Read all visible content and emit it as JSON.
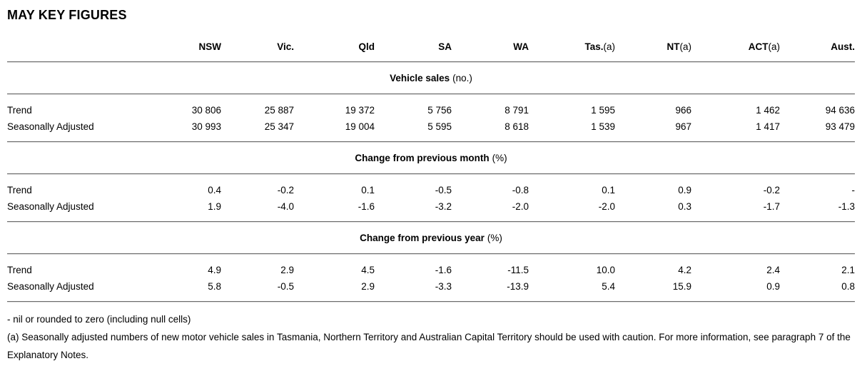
{
  "title": "MAY KEY FIGURES",
  "chart_data": {
    "type": "table",
    "title": "MAY KEY FIGURES",
    "columns": [
      {
        "label": "NSW",
        "note": ""
      },
      {
        "label": "Vic.",
        "note": ""
      },
      {
        "label": "Qld",
        "note": ""
      },
      {
        "label": "SA",
        "note": ""
      },
      {
        "label": "WA",
        "note": ""
      },
      {
        "label": "Tas.",
        "note": "(a)"
      },
      {
        "label": "NT",
        "note": "(a)"
      },
      {
        "label": "ACT",
        "note": "(a)"
      },
      {
        "label": "Aust.",
        "note": ""
      }
    ],
    "sections": [
      {
        "heading": "Vehicle sales",
        "unit": "(no.)",
        "rows": [
          {
            "label": "Trend",
            "values": [
              "30 806",
              "25 887",
              "19 372",
              "5 756",
              "8 791",
              "1 595",
              "966",
              "1 462",
              "94 636"
            ]
          },
          {
            "label": "Seasonally Adjusted",
            "values": [
              "30 993",
              "25 347",
              "19 004",
              "5 595",
              "8 618",
              "1 539",
              "967",
              "1 417",
              "93 479"
            ]
          }
        ]
      },
      {
        "heading": "Change from previous month",
        "unit": "(%)",
        "rows": [
          {
            "label": "Trend",
            "values": [
              "0.4",
              "-0.2",
              "0.1",
              "-0.5",
              "-0.8",
              "0.1",
              "0.9",
              "-0.2",
              "-"
            ]
          },
          {
            "label": "Seasonally Adjusted",
            "values": [
              "1.9",
              "-4.0",
              "-1.6",
              "-3.2",
              "-2.0",
              "-2.0",
              "0.3",
              "-1.7",
              "-1.3"
            ]
          }
        ]
      },
      {
        "heading": "Change from previous year",
        "unit": "(%)",
        "rows": [
          {
            "label": "Trend",
            "values": [
              "4.9",
              "2.9",
              "4.5",
              "-1.6",
              "-11.5",
              "10.0",
              "4.2",
              "2.4",
              "2.1"
            ]
          },
          {
            "label": "Seasonally Adjusted",
            "values": [
              "5.8",
              "-0.5",
              "2.9",
              "-3.3",
              "-13.9",
              "5.4",
              "15.9",
              "0.9",
              "0.8"
            ]
          }
        ]
      }
    ],
    "footnotes": [
      "- nil or rounded to zero (including null cells)",
      "(a) Seasonally adjusted numbers of new motor vehicle sales in Tasmania, Northern Territory and Australian Capital Territory should be used with caution. For more information, see paragraph 7 of the Explanatory Notes."
    ]
  }
}
